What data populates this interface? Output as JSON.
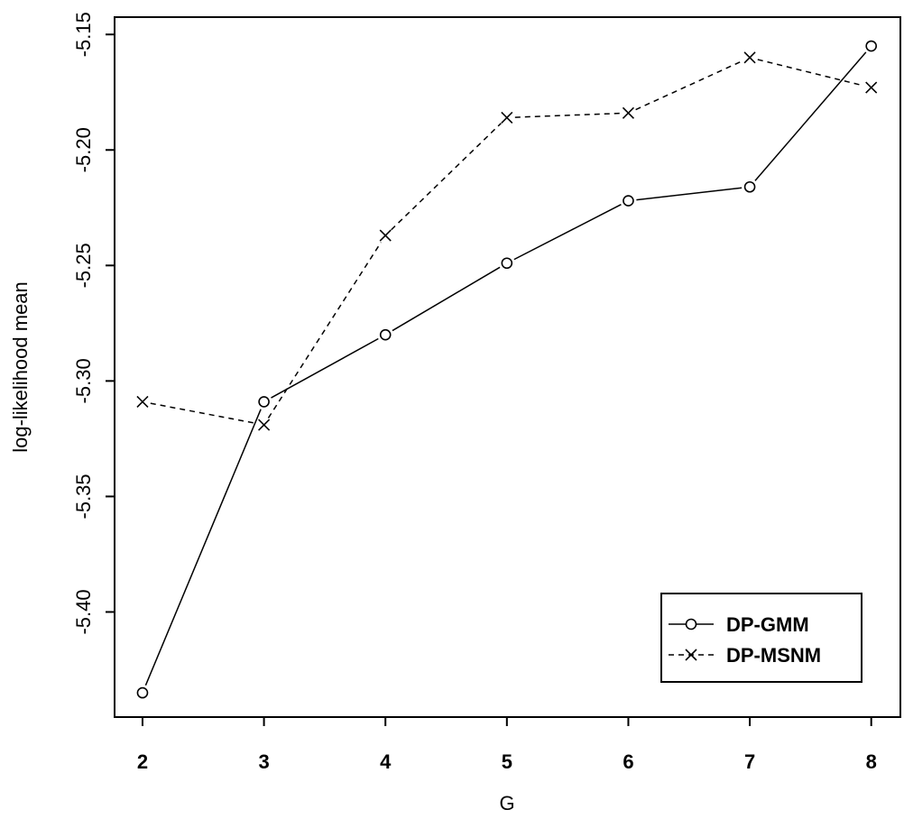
{
  "chart_data": {
    "type": "line",
    "xlabel": "G",
    "ylabel": "log-likelihood mean",
    "x": [
      2,
      3,
      4,
      5,
      6,
      7,
      8
    ],
    "xlim": [
      1.77,
      8.24
    ],
    "ylim": [
      -5.4455,
      -5.1425
    ],
    "yticks": [
      -5.15,
      -5.2,
      -5.25,
      -5.3,
      -5.35,
      -5.4
    ],
    "ytick_labels": [
      "-5.15",
      "-5.20",
      "-5.25",
      "-5.30",
      "-5.35",
      "-5.40"
    ],
    "xticks": [
      2,
      3,
      4,
      5,
      6,
      7,
      8
    ],
    "xtick_labels": [
      "2",
      "3",
      "4",
      "5",
      "6",
      "7",
      "8"
    ],
    "grid": false,
    "legend_position": "bottom-right",
    "series": [
      {
        "name": "DP-GMM",
        "line_style": "solid",
        "marker": "circle",
        "values": [
          -5.435,
          -5.309,
          -5.28,
          -5.249,
          -5.222,
          -5.216,
          -5.155
        ]
      },
      {
        "name": "DP-MSNM",
        "line_style": "dashed",
        "marker": "cross",
        "values": [
          -5.309,
          -5.319,
          -5.237,
          -5.186,
          -5.184,
          -5.16,
          -5.173
        ]
      }
    ]
  }
}
